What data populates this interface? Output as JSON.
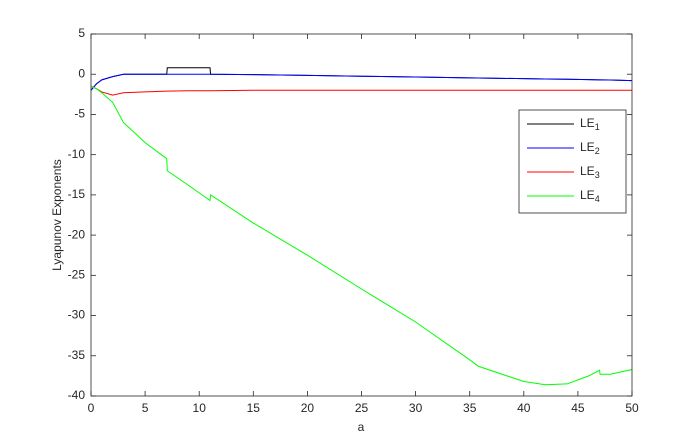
{
  "chart_data": {
    "type": "line",
    "xlabel": "a",
    "ylabel": "Lyapunov Exponents",
    "x": [
      0,
      0.5,
      1,
      2,
      3,
      5,
      7,
      7.05,
      9,
      11,
      11.05,
      15,
      20,
      25,
      30,
      35,
      35.8,
      40,
      42,
      44,
      46,
      47,
      47.05,
      48,
      50
    ],
    "series": [
      {
        "name": "LE1",
        "color": "#000000",
        "values": [
          -2,
          -1.2,
          -0.7,
          -0.3,
          0,
          0,
          0,
          0.8,
          0.8,
          0.8,
          0,
          -0.05,
          -0.15,
          -0.25,
          -0.35,
          -0.45,
          -0.47,
          -0.55,
          -0.6,
          -0.63,
          -0.67,
          -0.7,
          -0.7,
          -0.72,
          -0.8
        ]
      },
      {
        "name": "LE2",
        "color": "#0000ff",
        "values": [
          -2,
          -1.2,
          -0.7,
          -0.3,
          0,
          0,
          0,
          0,
          0,
          0,
          0,
          -0.05,
          -0.15,
          -0.25,
          -0.35,
          -0.45,
          -0.47,
          -0.55,
          -0.6,
          -0.63,
          -0.67,
          -0.7,
          -0.7,
          -0.72,
          -0.8
        ]
      },
      {
        "name": "LE3",
        "color": "#ff0000",
        "values": [
          -1.5,
          -1.8,
          -2.2,
          -2.6,
          -2.3,
          -2.2,
          -2.1,
          -2.1,
          -2.05,
          -2.05,
          -2.05,
          -2,
          -2,
          -2,
          -2,
          -2,
          -2,
          -2,
          -2,
          -2,
          -2,
          -2,
          -2,
          -2,
          -2
        ]
      },
      {
        "name": "LE4",
        "color": "#00ff00",
        "values": [
          -1.5,
          -1.8,
          -2.3,
          -3.5,
          -6,
          -8.5,
          -10.5,
          -12,
          -13.8,
          -15.7,
          -15,
          -18.5,
          -22.5,
          -26.7,
          -30.8,
          -35.5,
          -36.3,
          -38.2,
          -38.6,
          -38.5,
          -37.5,
          -36.8,
          -37.3,
          -37.3,
          -36.7
        ]
      }
    ],
    "xlim": [
      0,
      50
    ],
    "xticks": [
      0,
      5,
      10,
      15,
      20,
      25,
      30,
      35,
      40,
      45,
      50
    ],
    "ylim": [
      -40,
      5
    ],
    "yticks": [
      -40,
      -35,
      -30,
      -25,
      -20,
      -15,
      -10,
      -5,
      0,
      5
    ],
    "grid": false,
    "legend": "upper right"
  }
}
